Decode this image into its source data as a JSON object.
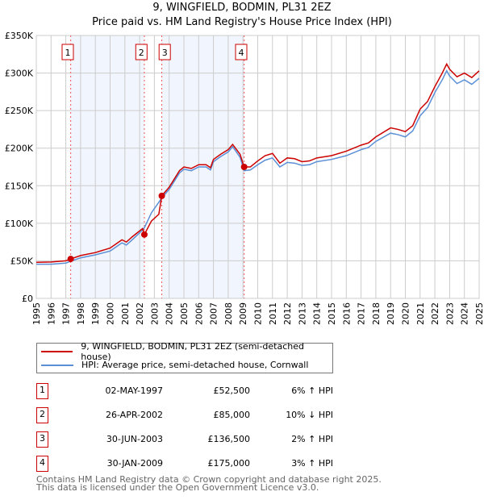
{
  "chart_data": {
    "type": "line",
    "title": "9, WINGFIELD, BODMIN, PL31 2EZ",
    "subtitle": "Price paid vs. HM Land Registry's House Price Index (HPI)",
    "xlim": [
      1995,
      2025
    ],
    "ylim": [
      0,
      350000
    ],
    "x_ticks": [
      "1995",
      "1996",
      "1997",
      "1998",
      "1999",
      "2000",
      "2001",
      "2002",
      "2003",
      "2004",
      "2005",
      "2006",
      "2007",
      "2008",
      "2009",
      "2010",
      "2011",
      "2012",
      "2013",
      "2014",
      "2015",
      "2016",
      "2017",
      "2018",
      "2019",
      "2020",
      "2021",
      "2022",
      "2023",
      "2024",
      "2025"
    ],
    "y_ticks": [
      {
        "v": 0,
        "l": "£0"
      },
      {
        "v": 50000,
        "l": "£50K"
      },
      {
        "v": 100000,
        "l": "£100K"
      },
      {
        "v": 150000,
        "l": "£150K"
      },
      {
        "v": 200000,
        "l": "£200K"
      },
      {
        "v": 250000,
        "l": "£250K"
      },
      {
        "v": 300000,
        "l": "£300K"
      },
      {
        "v": 350000,
        "l": "£350K"
      }
    ],
    "grid": true,
    "shaded_ranges": [
      [
        1997.33,
        2002.32
      ],
      [
        2003.5,
        2009.08
      ]
    ],
    "series": [
      {
        "name": "9, WINGFIELD, BODMIN, PL31 2EZ (semi-detached house)",
        "color": "#cc0000",
        "x": [
          1995,
          1996,
          1997,
          1997.33,
          1998,
          1999,
          2000,
          2000.8,
          2001.1,
          2001.5,
          2002.2,
          2002.32,
          2002.8,
          2003.3,
          2003.5,
          2004,
          2004.7,
          2005,
          2005.5,
          2006,
          2006.5,
          2006.8,
          2007,
          2007.5,
          2008,
          2008.3,
          2008.8,
          2009.08,
          2009.5,
          2010,
          2010.5,
          2011,
          2011.5,
          2012,
          2012.5,
          2013,
          2013.5,
          2014,
          2015,
          2016,
          2017,
          2017.5,
          2018,
          2019,
          2019.5,
          2020,
          2020.5,
          2021,
          2021.5,
          2022,
          2022.5,
          2022.8,
          2023,
          2023.5,
          2024,
          2024.5,
          2025
        ],
        "y": [
          48000,
          48500,
          50000,
          52500,
          57000,
          61000,
          67000,
          78000,
          75000,
          82000,
          93000,
          85000,
          103000,
          112000,
          136500,
          148000,
          170000,
          175000,
          173000,
          178000,
          178000,
          174000,
          185000,
          192000,
          198000,
          205000,
          192000,
          175000,
          175000,
          183000,
          190000,
          193000,
          180000,
          187000,
          186000,
          182000,
          183000,
          187000,
          190000,
          196000,
          204000,
          207000,
          215000,
          227000,
          225000,
          222000,
          230000,
          252000,
          262000,
          282000,
          300000,
          312000,
          305000,
          295000,
          300000,
          294000,
          303000
        ]
      },
      {
        "name": "HPI: Average price, semi-detached house, Cornwall",
        "color": "#5b8fd6",
        "x": [
          1995,
          1996,
          1997,
          1997.33,
          1998,
          1999,
          2000,
          2000.8,
          2001.1,
          2001.5,
          2002.2,
          2002.32,
          2002.8,
          2003.3,
          2003.5,
          2004,
          2004.7,
          2005,
          2005.5,
          2006,
          2006.5,
          2006.8,
          2007,
          2007.5,
          2008,
          2008.3,
          2008.8,
          2009.08,
          2009.5,
          2010,
          2010.5,
          2011,
          2011.5,
          2012,
          2012.5,
          2013,
          2013.5,
          2014,
          2015,
          2016,
          2017,
          2017.5,
          2018,
          2019,
          2019.5,
          2020,
          2020.5,
          2021,
          2021.5,
          2022,
          2022.5,
          2022.8,
          2023,
          2023.5,
          2024,
          2024.5,
          2025
        ],
        "y": [
          45500,
          45500,
          47000,
          49500,
          54000,
          58000,
          63000,
          74000,
          71000,
          78000,
          91000,
          94000,
          114000,
          128000,
          134000,
          145000,
          167000,
          172000,
          170000,
          175000,
          175000,
          171000,
          182000,
          189000,
          195000,
          202000,
          188000,
          170000,
          171000,
          178000,
          184000,
          187000,
          175000,
          181000,
          180000,
          177000,
          178000,
          182000,
          185000,
          190000,
          198000,
          201000,
          209000,
          220000,
          218000,
          215000,
          223000,
          243000,
          254000,
          274000,
          291000,
          303000,
          296000,
          286000,
          291000,
          285000,
          293000
        ]
      }
    ],
    "sales": [
      {
        "label": "1",
        "x": 1997.33,
        "y": 52500
      },
      {
        "label": "2",
        "x": 2002.32,
        "y": 85000
      },
      {
        "label": "3",
        "x": 2003.5,
        "y": 136500
      },
      {
        "label": "4",
        "x": 2009.08,
        "y": 175000
      }
    ]
  },
  "legend": {
    "red": "9, WINGFIELD, BODMIN, PL31 2EZ (semi-detached house)",
    "blue": "HPI: Average price, semi-detached house, Cornwall"
  },
  "table": [
    {
      "num": "1",
      "date": "02-MAY-1997",
      "price": "£52,500",
      "hpi": "6% ↑ HPI"
    },
    {
      "num": "2",
      "date": "26-APR-2002",
      "price": "£85,000",
      "hpi": "10% ↓ HPI"
    },
    {
      "num": "3",
      "date": "30-JUN-2003",
      "price": "£136,500",
      "hpi": "2% ↑ HPI"
    },
    {
      "num": "4",
      "date": "30-JAN-2009",
      "price": "£175,000",
      "hpi": "3% ↑ HPI"
    }
  ],
  "footer": {
    "line1": "Contains HM Land Registry data © Crown copyright and database right 2025.",
    "line2": "This data is licensed under the Open Government Licence v3.0."
  }
}
